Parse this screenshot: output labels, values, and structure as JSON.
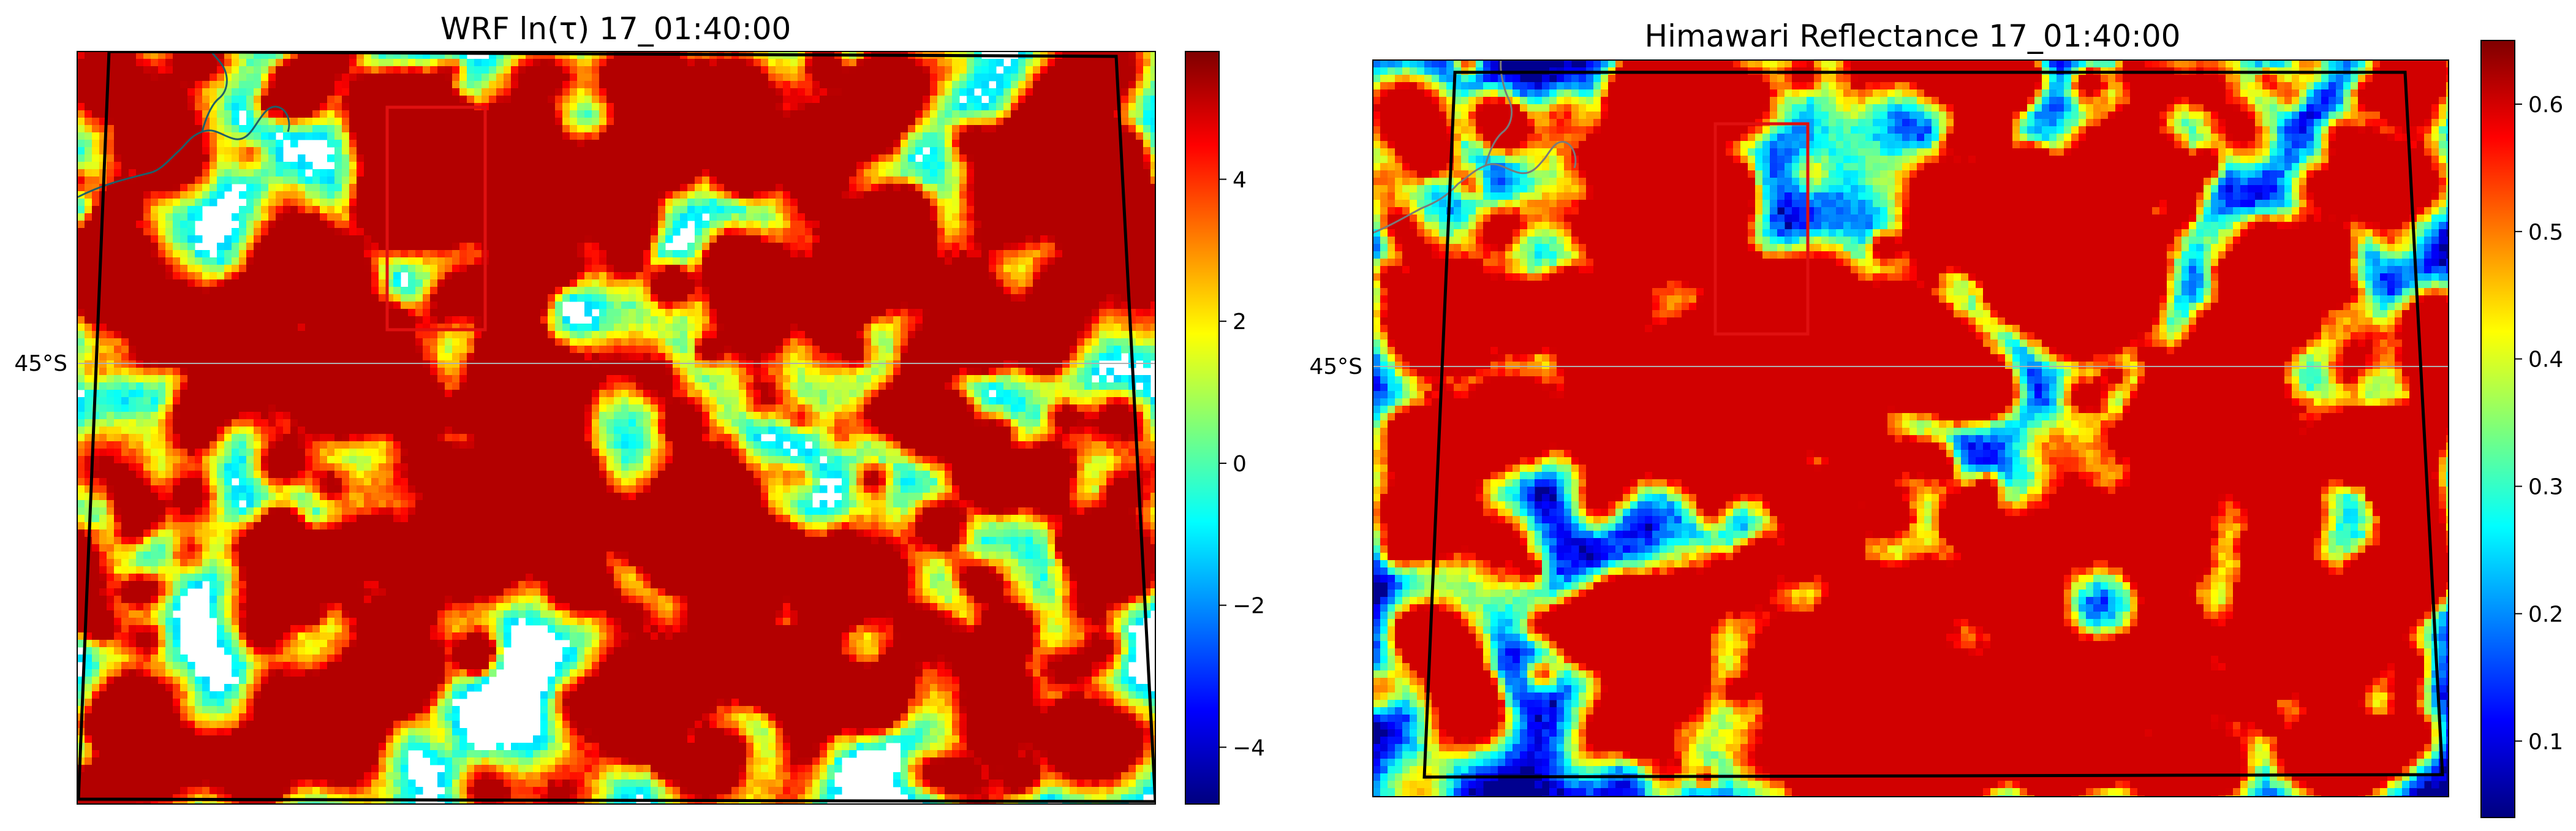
{
  "panels": [
    {
      "title": "WRF ln(τ) 17_01:40:00",
      "lat_label": "45°S",
      "colorbar": {
        "colormap": "jet",
        "vmin": -4.8,
        "vmax": 5.8,
        "ticks": [
          {
            "value": 4,
            "label": "4"
          },
          {
            "value": 2,
            "label": "2"
          },
          {
            "value": 0,
            "label": "0"
          },
          {
            "value": -2,
            "label": "−2"
          },
          {
            "value": -4,
            "label": "−4"
          }
        ]
      },
      "field": {
        "background": "#ffffff",
        "cloud_cover": 0.55,
        "seed": 7
      }
    },
    {
      "title": "Himawari Reflectance 17_01:40:00",
      "lat_label": "45°S",
      "colorbar": {
        "colormap": "jet",
        "vmin": 0.04,
        "vmax": 0.65,
        "ticks": [
          {
            "value": 0.6,
            "label": "0.6"
          },
          {
            "value": 0.5,
            "label": "0.5"
          },
          {
            "value": 0.4,
            "label": "0.4"
          },
          {
            "value": 0.3,
            "label": "0.3"
          },
          {
            "value": 0.2,
            "label": "0.2"
          },
          {
            "value": 0.1,
            "label": "0.1"
          }
        ]
      },
      "field": {
        "background": "#00008f",
        "cloud_cover": 0.6,
        "seed": 13
      }
    }
  ],
  "colors": {
    "box": "#e01010",
    "domain": "#000000",
    "coast": "#1f5f6a",
    "grid": "#b0b0b0"
  }
}
